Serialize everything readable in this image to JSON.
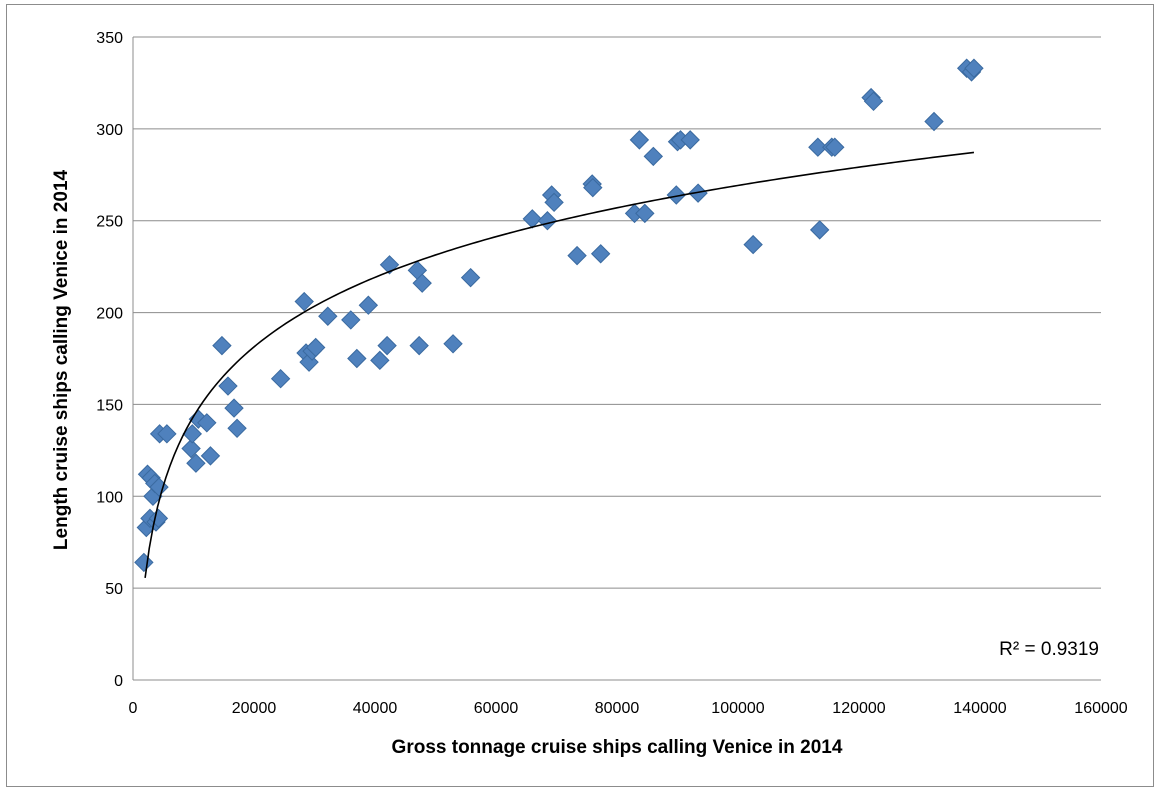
{
  "chart_data": {
    "type": "scatter",
    "title": "",
    "xlabel": "Gross tonnage cruise ships calling Venice in 2014",
    "ylabel": "Length cruise ships calling Venice in 2014",
    "xlim": [
      0,
      160000
    ],
    "ylim": [
      0,
      350
    ],
    "xticks": [
      "0",
      "20000",
      "40000",
      "60000",
      "80000",
      "100000",
      "120000",
      "140000",
      "160000"
    ],
    "yticks": [
      "0",
      "50",
      "100",
      "150",
      "200",
      "250",
      "300",
      "350"
    ],
    "grid": "horizontal",
    "marker": "diamond",
    "point_color": "#4f81bd",
    "point_edge_color": "#3a6aa0",
    "trendline": {
      "type": "logarithmic",
      "x_range": [
        2000,
        139000
      ],
      "color": "#000000",
      "r2_label": "R² = 0.9319"
    },
    "points": [
      [
        1800,
        64
      ],
      [
        2200,
        83
      ],
      [
        2400,
        112
      ],
      [
        2800,
        88
      ],
      [
        3000,
        110
      ],
      [
        3300,
        100
      ],
      [
        3600,
        107
      ],
      [
        3800,
        86
      ],
      [
        4200,
        88
      ],
      [
        4300,
        105
      ],
      [
        4400,
        134
      ],
      [
        5600,
        134
      ],
      [
        9600,
        126
      ],
      [
        9800,
        134
      ],
      [
        10400,
        118
      ],
      [
        10800,
        142
      ],
      [
        12200,
        140
      ],
      [
        12800,
        122
      ],
      [
        14700,
        182
      ],
      [
        15700,
        160
      ],
      [
        16700,
        148
      ],
      [
        17200,
        137
      ],
      [
        24400,
        164
      ],
      [
        28300,
        206
      ],
      [
        28600,
        178
      ],
      [
        29100,
        173
      ],
      [
        29600,
        179
      ],
      [
        30200,
        181
      ],
      [
        32200,
        198
      ],
      [
        36000,
        196
      ],
      [
        37000,
        175
      ],
      [
        38900,
        204
      ],
      [
        40800,
        174
      ],
      [
        42000,
        182
      ],
      [
        42400,
        226
      ],
      [
        47000,
        223
      ],
      [
        47300,
        182
      ],
      [
        47800,
        216
      ],
      [
        52900,
        183
      ],
      [
        55800,
        219
      ],
      [
        66000,
        251
      ],
      [
        68500,
        250
      ],
      [
        69200,
        264
      ],
      [
        69600,
        260
      ],
      [
        73400,
        231
      ],
      [
        75900,
        270
      ],
      [
        76000,
        268
      ],
      [
        77300,
        232
      ],
      [
        82900,
        254
      ],
      [
        83700,
        294
      ],
      [
        84600,
        254
      ],
      [
        86000,
        285
      ],
      [
        89800,
        264
      ],
      [
        90000,
        293
      ],
      [
        90500,
        294
      ],
      [
        92100,
        294
      ],
      [
        93400,
        265
      ],
      [
        102500,
        237
      ],
      [
        113200,
        290
      ],
      [
        113500,
        245
      ],
      [
        115500,
        290
      ],
      [
        116000,
        290
      ],
      [
        122000,
        317
      ],
      [
        122400,
        315
      ],
      [
        132400,
        304
      ],
      [
        137800,
        333
      ],
      [
        138600,
        331
      ],
      [
        139000,
        333
      ]
    ]
  }
}
